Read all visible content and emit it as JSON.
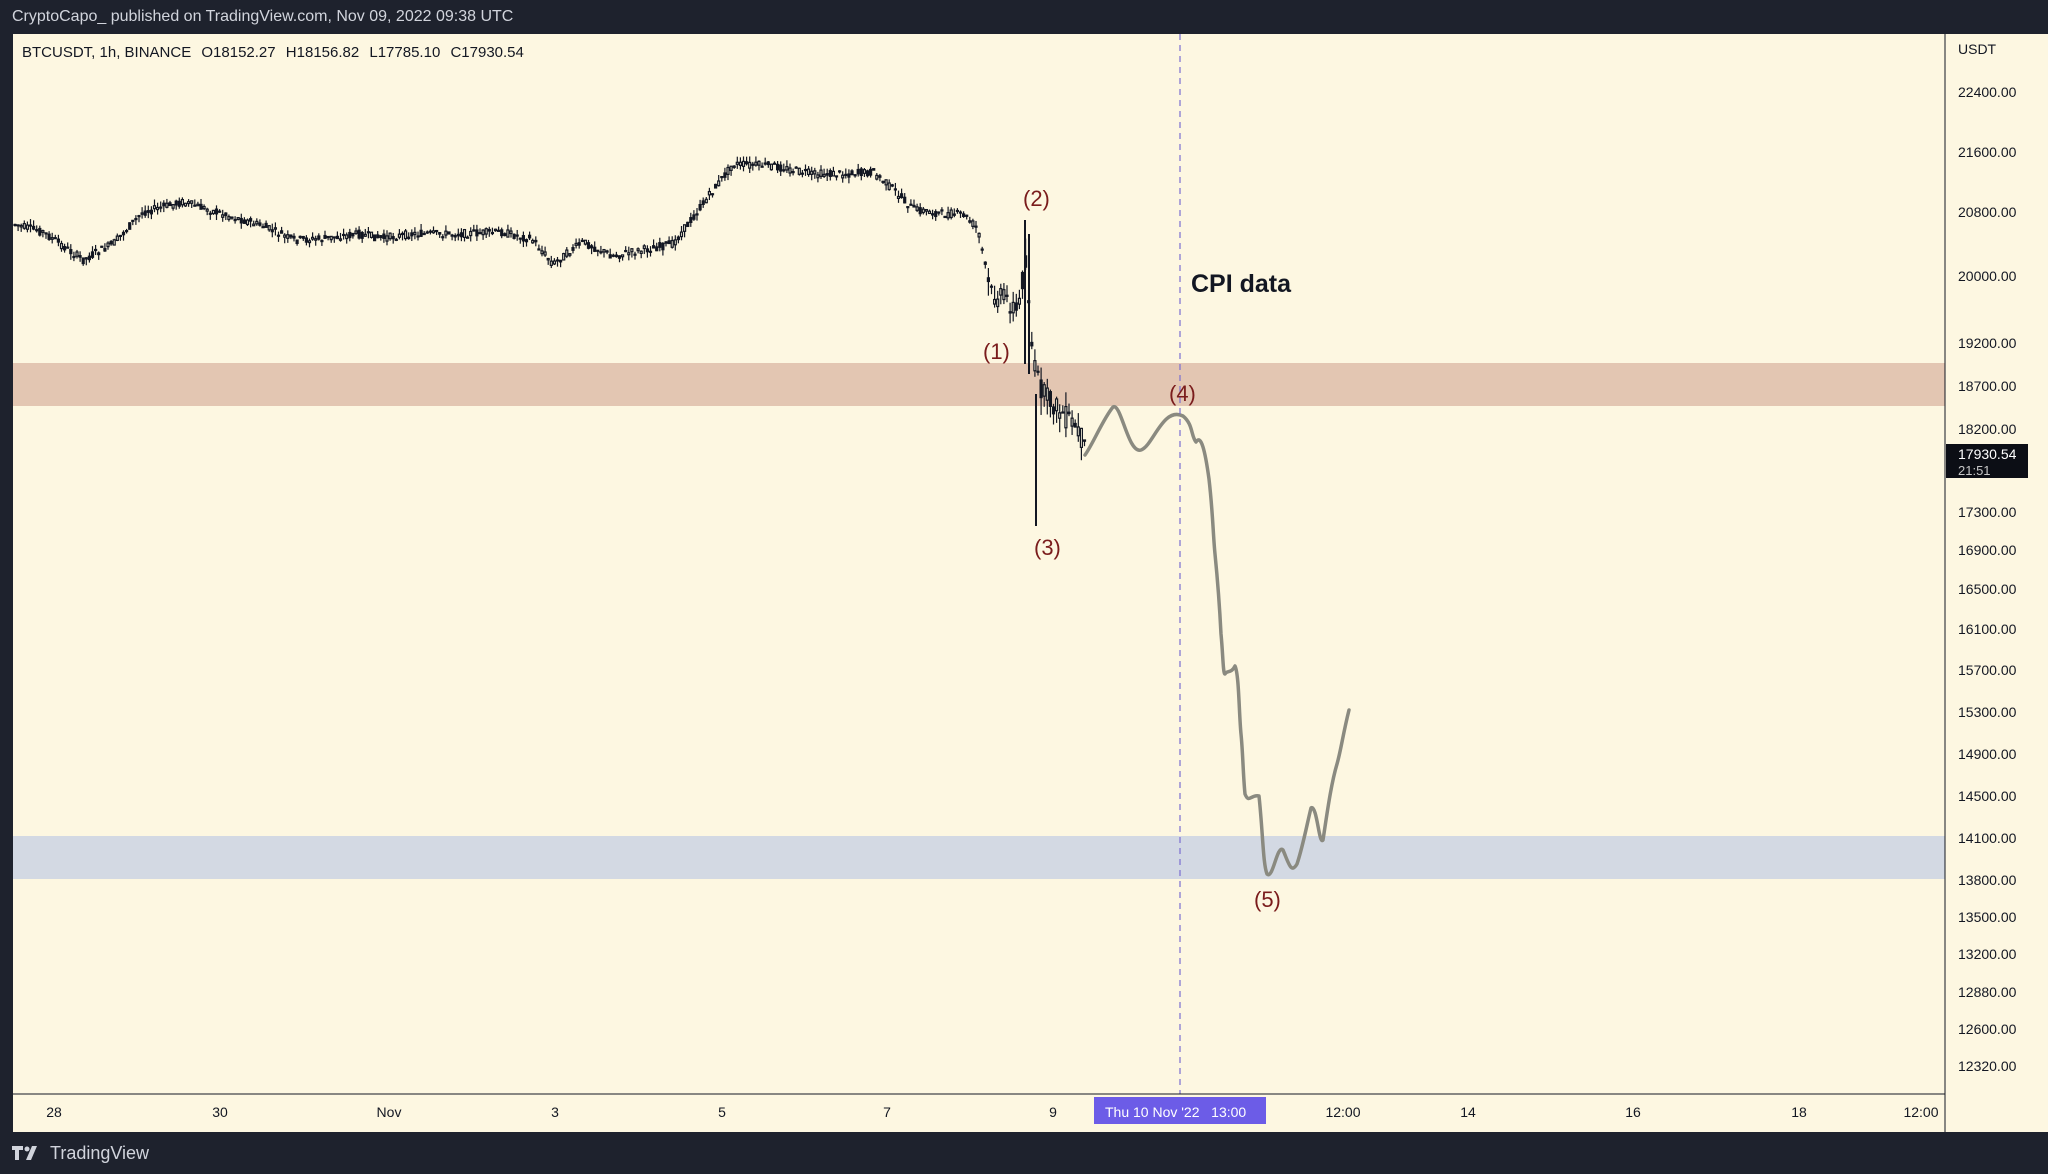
{
  "header": {
    "published_line": "CryptoCapo_ published on TradingView.com, Nov 09, 2022 09:38 UTC"
  },
  "footer": {
    "brand": "TradingView",
    "brand_icon": "tradingview-logo-icon"
  },
  "legend": {
    "symbol": "BTCUSDT, 1h, BINANCE",
    "open": "O18152.27",
    "high": "H18156.82",
    "low": "L17785.10",
    "close": "C17930.54"
  },
  "price_axis": {
    "unit": "USDT",
    "ticks": [
      "22400.00",
      "21600.00",
      "20800.00",
      "20000.00",
      "19200.00",
      "18700.00",
      "18200.00",
      "17300.00",
      "16900.00",
      "16500.00",
      "16100.00",
      "15700.00",
      "15300.00",
      "14900.00",
      "14500.00",
      "14100.00",
      "13800.00",
      "13500.00",
      "13200.00",
      "12880.00",
      "12600.00",
      "12320.00"
    ],
    "current_price": "17930.54",
    "countdown": "21:51"
  },
  "time_axis": {
    "ticks": [
      "28",
      "30",
      "Nov",
      "3",
      "5",
      "7",
      "9",
      "12:00",
      "14",
      "16",
      "18",
      "12:00"
    ],
    "crosshair_label": "Thu 10 Nov '22   13:00"
  },
  "annotations": {
    "wave_1": "(1)",
    "wave_2": "(2)",
    "wave_3": "(3)",
    "wave_4": "(4)",
    "wave_5": "(5)",
    "event_label": "CPI data"
  },
  "colors": {
    "chart_bg": "#fdf7e1",
    "resistance_zone": "#e3c6b2",
    "support_zone": "#d3d9e3",
    "projection_path": "#8a8a80",
    "wave_label": "#7a1c1c",
    "crosshair_line": "#7a6fd0",
    "crosshair_label_bg": "#6c5ce7"
  },
  "chart_data": {
    "type": "candlestick",
    "symbol": "BTCUSDT",
    "interval": "1h",
    "exchange": "BINANCE",
    "ohlc_last": {
      "open": 18152.27,
      "high": 18156.82,
      "low": 17785.1,
      "close": 17930.54
    },
    "zones": [
      {
        "name": "resistance",
        "low": 18550,
        "high": 19050
      },
      {
        "name": "support",
        "low": 13800,
        "high": 14200
      }
    ],
    "wave_points": [
      {
        "label": "(1)",
        "price": 19450
      },
      {
        "label": "(2)",
        "price": 20700
      },
      {
        "label": "(3)",
        "price": 17200
      },
      {
        "label": "(4)",
        "price": 18300
      },
      {
        "label": "(5)",
        "price": 13800
      }
    ],
    "event": {
      "label": "CPI data",
      "time": "Thu 10 Nov '22 13:00"
    },
    "grid": false
  }
}
